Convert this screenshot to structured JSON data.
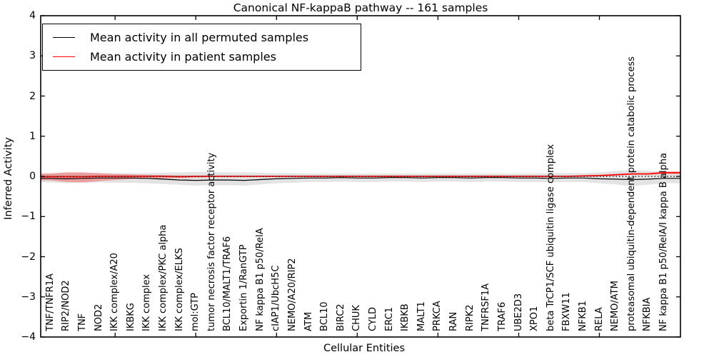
{
  "figure": {
    "title": "Canonical NF-kappaB pathway -- 161 samples",
    "xlabel": "Cellular Entities",
    "ylabel": "Inferred Activity"
  },
  "legend": {
    "position": "upper left",
    "entries": [
      {
        "label": "Mean activity in all permuted samples",
        "color": "#000000"
      },
      {
        "label": "Mean activity in patient samples",
        "color": "#ff0000"
      }
    ]
  },
  "chart_data": {
    "type": "line",
    "title": "Canonical NF-kappaB pathway -- 161 samples",
    "xlabel": "Cellular Entities",
    "ylabel": "Inferred Activity",
    "ylim": [
      -4,
      4
    ],
    "yticks": {
      "values": [
        4,
        3,
        2,
        1,
        0,
        -1,
        -2,
        -3,
        -4
      ],
      "labels": [
        "4",
        "3",
        "2",
        "1",
        "0",
        "−1",
        "−2",
        "−3",
        "−4"
      ]
    },
    "grid": false,
    "legend_position": "upper left",
    "zero_line": {
      "y": 0,
      "style": "dotted",
      "color": "#000000"
    },
    "x_major_tick_indices": [
      4,
      9,
      14,
      19,
      24,
      29,
      34
    ],
    "categories": [
      "TNF/TNFR1A",
      "RIP2/NOD2",
      "TNF",
      "NOD2",
      "IKK complex/A20",
      "IKBKG",
      "IKK complex",
      "IKK complex/PKC alpha",
      "IKK complex/ELKS",
      "mol:GTP",
      "tumor necrosis factor receptor activity",
      "BCL10/MALT1/TRAF6",
      "Exportin 1/RanGTP",
      "NF kappa B1 p50/RelA",
      "cIAP1/UbcH5C",
      "NEMO/A20/RIP2",
      "ATM",
      "BCL10",
      "BIRC2",
      "CHUK",
      "CYLD",
      "ERC1",
      "IKBKB",
      "MALT1",
      "PRKCA",
      "RAN",
      "RIPK2",
      "TNFRSF1A",
      "TRAF6",
      "UBE2D3",
      "XPO1",
      "beta TrCP1/SCF ubiquitin ligase complex",
      "FBXW11",
      "NFKB1",
      "RELA",
      "NEMO/ATM",
      "proteasomal ubiquitin-dependent protein catabolic process",
      "NFKBIA",
      "NF kappa B1 p50/RelA/I kappa B alpha"
    ],
    "series": [
      {
        "name": "Mean activity in all permuted samples",
        "color": "#000000",
        "values": [
          -0.05,
          -0.06,
          -0.05,
          -0.04,
          -0.04,
          -0.04,
          -0.05,
          -0.07,
          -0.09,
          -0.1,
          -0.09,
          -0.09,
          -0.1,
          -0.08,
          -0.06,
          -0.05,
          -0.04,
          -0.04,
          -0.03,
          -0.04,
          -0.04,
          -0.03,
          -0.03,
          -0.04,
          -0.03,
          -0.03,
          -0.04,
          -0.03,
          -0.03,
          -0.04,
          -0.04,
          -0.05,
          -0.04,
          -0.04,
          -0.06,
          -0.07,
          -0.08,
          -0.07,
          -0.05
        ],
        "band": {
          "color": "rgba(0,0,0,0.11)",
          "upper": [
            0.08,
            0.09,
            0.09,
            0.08,
            0.08,
            0.08,
            0.08,
            0.09,
            0.1,
            0.11,
            0.1,
            0.1,
            0.1,
            0.09,
            0.08,
            0.08,
            0.07,
            0.07,
            0.07,
            0.07,
            0.07,
            0.07,
            0.07,
            0.07,
            0.07,
            0.07,
            0.07,
            0.07,
            0.07,
            0.07,
            0.07,
            0.08,
            0.08,
            0.08,
            0.1,
            0.13,
            0.16,
            0.14,
            0.12
          ],
          "lower": [
            -0.15,
            -0.17,
            -0.16,
            -0.15,
            -0.16,
            -0.16,
            -0.17,
            -0.19,
            -0.21,
            -0.23,
            -0.22,
            -0.22,
            -0.23,
            -0.2,
            -0.17,
            -0.16,
            -0.14,
            -0.14,
            -0.13,
            -0.14,
            -0.14,
            -0.13,
            -0.13,
            -0.14,
            -0.13,
            -0.13,
            -0.14,
            -0.13,
            -0.13,
            -0.14,
            -0.14,
            -0.15,
            -0.14,
            -0.14,
            -0.17,
            -0.2,
            -0.24,
            -0.21,
            -0.17
          ]
        }
      },
      {
        "name": "Mean activity in patient samples",
        "color": "#ff0000",
        "values": [
          -0.01,
          -0.01,
          -0.01,
          0.0,
          0.0,
          0.0,
          0.0,
          0.0,
          -0.01,
          0.0,
          0.0,
          0.0,
          0.0,
          0.0,
          0.0,
          0.0,
          0.0,
          0.0,
          0.0,
          0.0,
          0.0,
          0.0,
          0.0,
          0.0,
          0.0,
          0.0,
          0.0,
          0.0,
          0.0,
          0.0,
          0.0,
          0.0,
          0.0,
          0.01,
          0.02,
          0.04,
          0.06,
          0.06,
          0.09
        ],
        "band": {
          "color": "rgba(255,0,0,0.30)",
          "upper": [
            0.07,
            0.1,
            0.1,
            0.08,
            0.06,
            0.05,
            0.04,
            0.03,
            0.02,
            0.02,
            0.02,
            0.02,
            0.02,
            0.02,
            0.02,
            0.02,
            0.02,
            0.02,
            0.02,
            0.02,
            0.02,
            0.02,
            0.02,
            0.02,
            0.02,
            0.02,
            0.02,
            0.02,
            0.02,
            0.02,
            0.02,
            0.02,
            0.02,
            0.03,
            0.04,
            0.06,
            0.08,
            0.08,
            0.12
          ],
          "lower": [
            -0.1,
            -0.14,
            -0.15,
            -0.12,
            -0.09,
            -0.07,
            -0.06,
            -0.05,
            -0.04,
            -0.03,
            -0.02,
            -0.02,
            -0.02,
            -0.02,
            -0.02,
            -0.02,
            -0.02,
            -0.02,
            -0.02,
            -0.02,
            -0.02,
            -0.02,
            -0.02,
            -0.02,
            -0.02,
            -0.02,
            -0.02,
            -0.02,
            -0.02,
            -0.02,
            -0.02,
            -0.02,
            -0.02,
            -0.01,
            0.0,
            0.02,
            0.04,
            0.04,
            0.06
          ]
        }
      }
    ]
  }
}
